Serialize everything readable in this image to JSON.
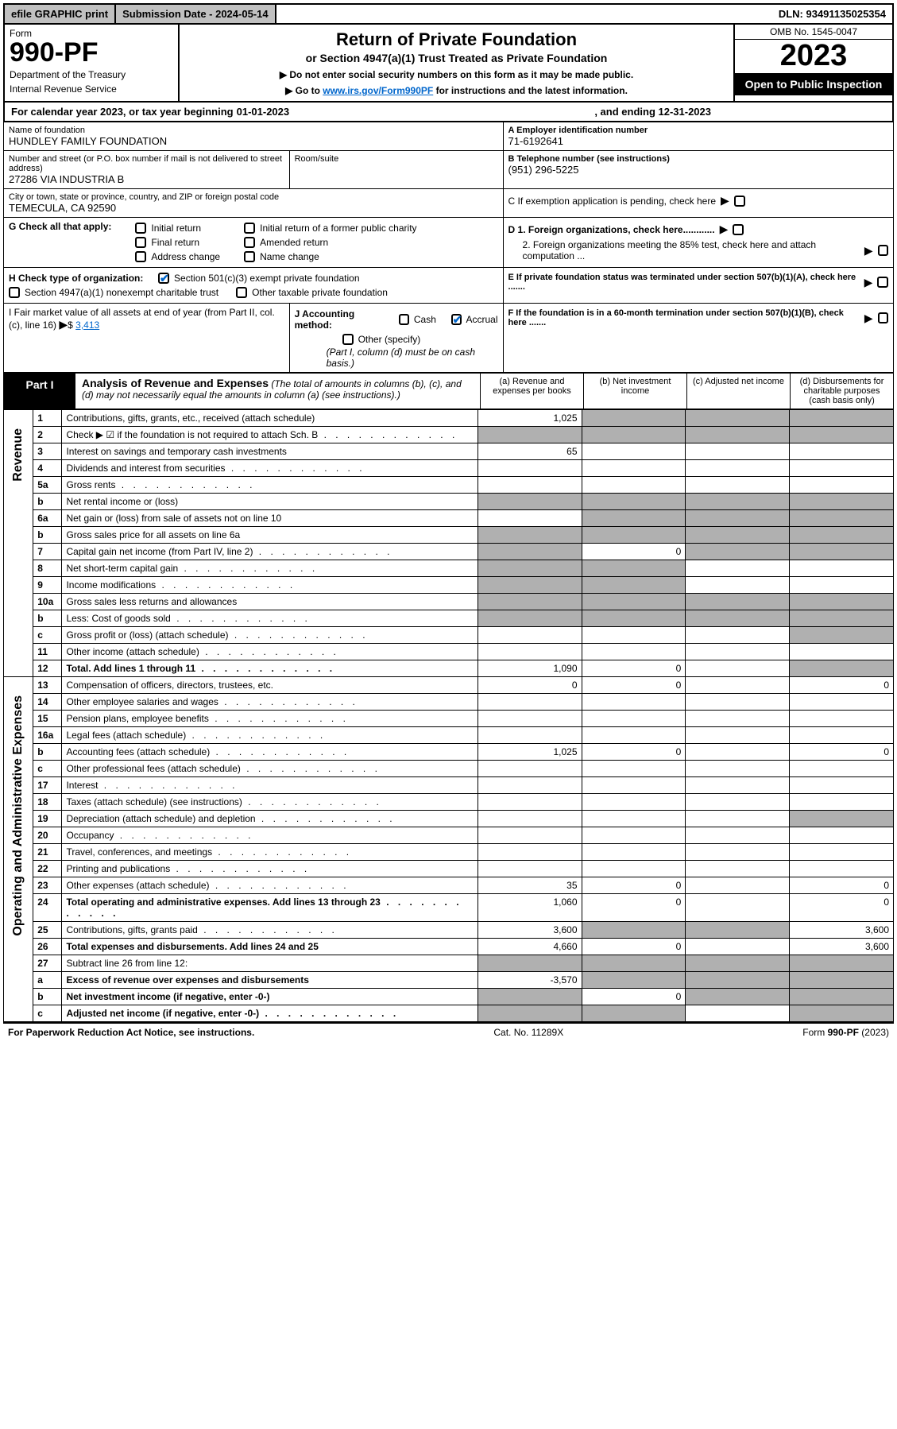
{
  "topbar": {
    "efile": "efile GRAPHIC print",
    "subdate_lbl": "Submission Date - 2024-05-14",
    "dln": "DLN: 93491135025354"
  },
  "hdr": {
    "form": "Form",
    "code": "990-PF",
    "dept1": "Department of the Treasury",
    "dept2": "Internal Revenue Service",
    "title": "Return of Private Foundation",
    "sub": "or Section 4947(a)(1) Trust Treated as Private Foundation",
    "note1": "▶ Do not enter social security numbers on this form as it may be made public.",
    "note2_pre": "▶ Go to ",
    "note2_link": "www.irs.gov/Form990PF",
    "note2_post": " for instructions and the latest information.",
    "omb": "OMB No. 1545-0047",
    "year": "2023",
    "open": "Open to Public Inspection"
  },
  "cal": {
    "pre": "For calendar year 2023, or tax year beginning ",
    "beg": "01-01-2023",
    "mid": ", and ending ",
    "end": "12-31-2023"
  },
  "id": {
    "name_lbl": "Name of foundation",
    "name": "HUNDLEY FAMILY FOUNDATION",
    "a_lbl": "A Employer identification number",
    "a_val": "71-6192641",
    "addr_lbl": "Number and street (or P.O. box number if mail is not delivered to street address)",
    "addr": "27286 VIA INDUSTRIA B",
    "room_lbl": "Room/suite",
    "b_lbl": "B Telephone number (see instructions)",
    "b_val": "(951) 296-5225",
    "city_lbl": "City or town, state or province, country, and ZIP or foreign postal code",
    "city": "TEMECULA, CA  92590",
    "c_lbl": "C If exemption application is pending, check here",
    "g_lbl": "G Check all that apply:",
    "g_initial": "Initial return",
    "g_initial_former": "Initial return of a former public charity",
    "g_final": "Final return",
    "g_amended": "Amended return",
    "g_addr": "Address change",
    "g_name": "Name change",
    "d1": "D 1. Foreign organizations, check here............",
    "d2": "2. Foreign organizations meeting the 85% test, check here and attach computation ...",
    "h_lbl": "H Check type of organization:",
    "h_501": "Section 501(c)(3) exempt private foundation",
    "h_4947": "Section 4947(a)(1) nonexempt charitable trust",
    "h_other": "Other taxable private foundation",
    "e_lbl": "E  If private foundation status was terminated under section 507(b)(1)(A), check here .......",
    "i_lbl": "I Fair market value of all assets at end of year (from Part II, col. (c), line 16)",
    "i_val": "3,413",
    "j_lbl": "J Accounting method:",
    "j_cash": "Cash",
    "j_accr": "Accrual",
    "j_other": "Other (specify)",
    "j_note": "(Part I, column (d) must be on cash basis.)",
    "f_lbl": "F  If the foundation is in a 60-month termination under section 507(b)(1)(B), check here ......."
  },
  "part1": {
    "label": "Part I",
    "title": "Analysis of Revenue and Expenses",
    "title_note": " (The total of amounts in columns (b), (c), and (d) may not necessarily equal the amounts in column (a) (see instructions).)",
    "col_a": "(a)   Revenue and expenses per books",
    "col_b": "(b)   Net investment income",
    "col_c": "(c)   Adjusted net income",
    "col_d": "(d)   Disbursements for charitable purposes (cash basis only)"
  },
  "side": {
    "rev": "Revenue",
    "exp": "Operating and Administrative Expenses"
  },
  "rows": [
    {
      "n": "1",
      "t": "Contributions, gifts, grants, etc., received (attach schedule)",
      "a": "1,025",
      "b": "",
      "c": "",
      "d": "",
      "grey_bcd": true
    },
    {
      "n": "2",
      "t": "Check ▶ ☑ if the foundation is not required to attach Sch. B",
      "a": "",
      "grey_a": true,
      "grey_bcd": true,
      "dots": true
    },
    {
      "n": "3",
      "t": "Interest on savings and temporary cash investments",
      "a": "65"
    },
    {
      "n": "4",
      "t": "Dividends and interest from securities",
      "dots": true
    },
    {
      "n": "5a",
      "t": "Gross rents",
      "dots": true
    },
    {
      "n": "b",
      "t": "Net rental income or (loss)",
      "grey_bcd": true,
      "grey_a": true,
      "inline": true
    },
    {
      "n": "6a",
      "t": "Net gain or (loss) from sale of assets not on line 10",
      "grey_bcd": true
    },
    {
      "n": "b",
      "t": "Gross sales price for all assets on line 6a",
      "grey_bcd": true,
      "grey_a": true,
      "inline": true
    },
    {
      "n": "7",
      "t": "Capital gain net income (from Part IV, line 2)",
      "dots": true,
      "grey_a": true,
      "b": "0",
      "grey_cd": true
    },
    {
      "n": "8",
      "t": "Net short-term capital gain",
      "dots": true,
      "grey_ab": true
    },
    {
      "n": "9",
      "t": "Income modifications",
      "dots": true,
      "grey_ab": true
    },
    {
      "n": "10a",
      "t": "Gross sales less returns and allowances",
      "grey_bcd": true,
      "grey_a": true,
      "inline": true
    },
    {
      "n": "b",
      "t": "Less: Cost of goods sold",
      "dots": true,
      "grey_bcd": true,
      "grey_a": true,
      "inline": true
    },
    {
      "n": "c",
      "t": "Gross profit or (loss) (attach schedule)",
      "dots": true,
      "grey_d": true
    },
    {
      "n": "11",
      "t": "Other income (attach schedule)",
      "dots": true
    },
    {
      "n": "12",
      "t": "Total. Add lines 1 through 11",
      "dots": true,
      "bold": true,
      "a": "1,090",
      "b": "0",
      "grey_d": true
    }
  ],
  "erows": [
    {
      "n": "13",
      "t": "Compensation of officers, directors, trustees, etc.",
      "a": "0",
      "b": "0",
      "d": "0"
    },
    {
      "n": "14",
      "t": "Other employee salaries and wages",
      "dots": true
    },
    {
      "n": "15",
      "t": "Pension plans, employee benefits",
      "dots": true
    },
    {
      "n": "16a",
      "t": "Legal fees (attach schedule)",
      "dots": true
    },
    {
      "n": "b",
      "t": "Accounting fees (attach schedule)",
      "dots": true,
      "a": "1,025",
      "b": "0",
      "d": "0"
    },
    {
      "n": "c",
      "t": "Other professional fees (attach schedule)",
      "dots": true
    },
    {
      "n": "17",
      "t": "Interest",
      "dots": true
    },
    {
      "n": "18",
      "t": "Taxes (attach schedule) (see instructions)",
      "dots": true
    },
    {
      "n": "19",
      "t": "Depreciation (attach schedule) and depletion",
      "dots": true,
      "grey_d": true
    },
    {
      "n": "20",
      "t": "Occupancy",
      "dots": true
    },
    {
      "n": "21",
      "t": "Travel, conferences, and meetings",
      "dots": true
    },
    {
      "n": "22",
      "t": "Printing and publications",
      "dots": true
    },
    {
      "n": "23",
      "t": "Other expenses (attach schedule)",
      "dots": true,
      "a": "35",
      "b": "0",
      "d": "0"
    },
    {
      "n": "24",
      "t": "Total operating and administrative expenses. Add lines 13 through 23",
      "dots": true,
      "bold": true,
      "a": "1,060",
      "b": "0",
      "d": "0"
    },
    {
      "n": "25",
      "t": "Contributions, gifts, grants paid",
      "dots": true,
      "a": "3,600",
      "grey_bc": true,
      "d": "3,600"
    },
    {
      "n": "26",
      "t": "Total expenses and disbursements. Add lines 24 and 25",
      "bold": true,
      "a": "4,660",
      "b": "0",
      "d": "3,600"
    },
    {
      "n": "27",
      "t": "Subtract line 26 from line 12:",
      "grey_all": true
    },
    {
      "n": "a",
      "t": "Excess of revenue over expenses and disbursements",
      "bold": true,
      "a": "-3,570",
      "grey_bcd": true
    },
    {
      "n": "b",
      "t": "Net investment income (if negative, enter -0-)",
      "bold": true,
      "grey_a": true,
      "b": "0",
      "grey_cd": true
    },
    {
      "n": "c",
      "t": "Adjusted net income (if negative, enter -0-)",
      "bold": true,
      "dots": true,
      "grey_ab": true,
      "grey_d": true
    }
  ],
  "ftr": {
    "left": "For Paperwork Reduction Act Notice, see instructions.",
    "mid": "Cat. No. 11289X",
    "right": "Form 990-PF (2023)"
  },
  "colors": {
    "header_bg": "#000000",
    "grey": "#b0b0b0",
    "link": "#0066cc",
    "btn_bg": "#c0c0c0"
  }
}
